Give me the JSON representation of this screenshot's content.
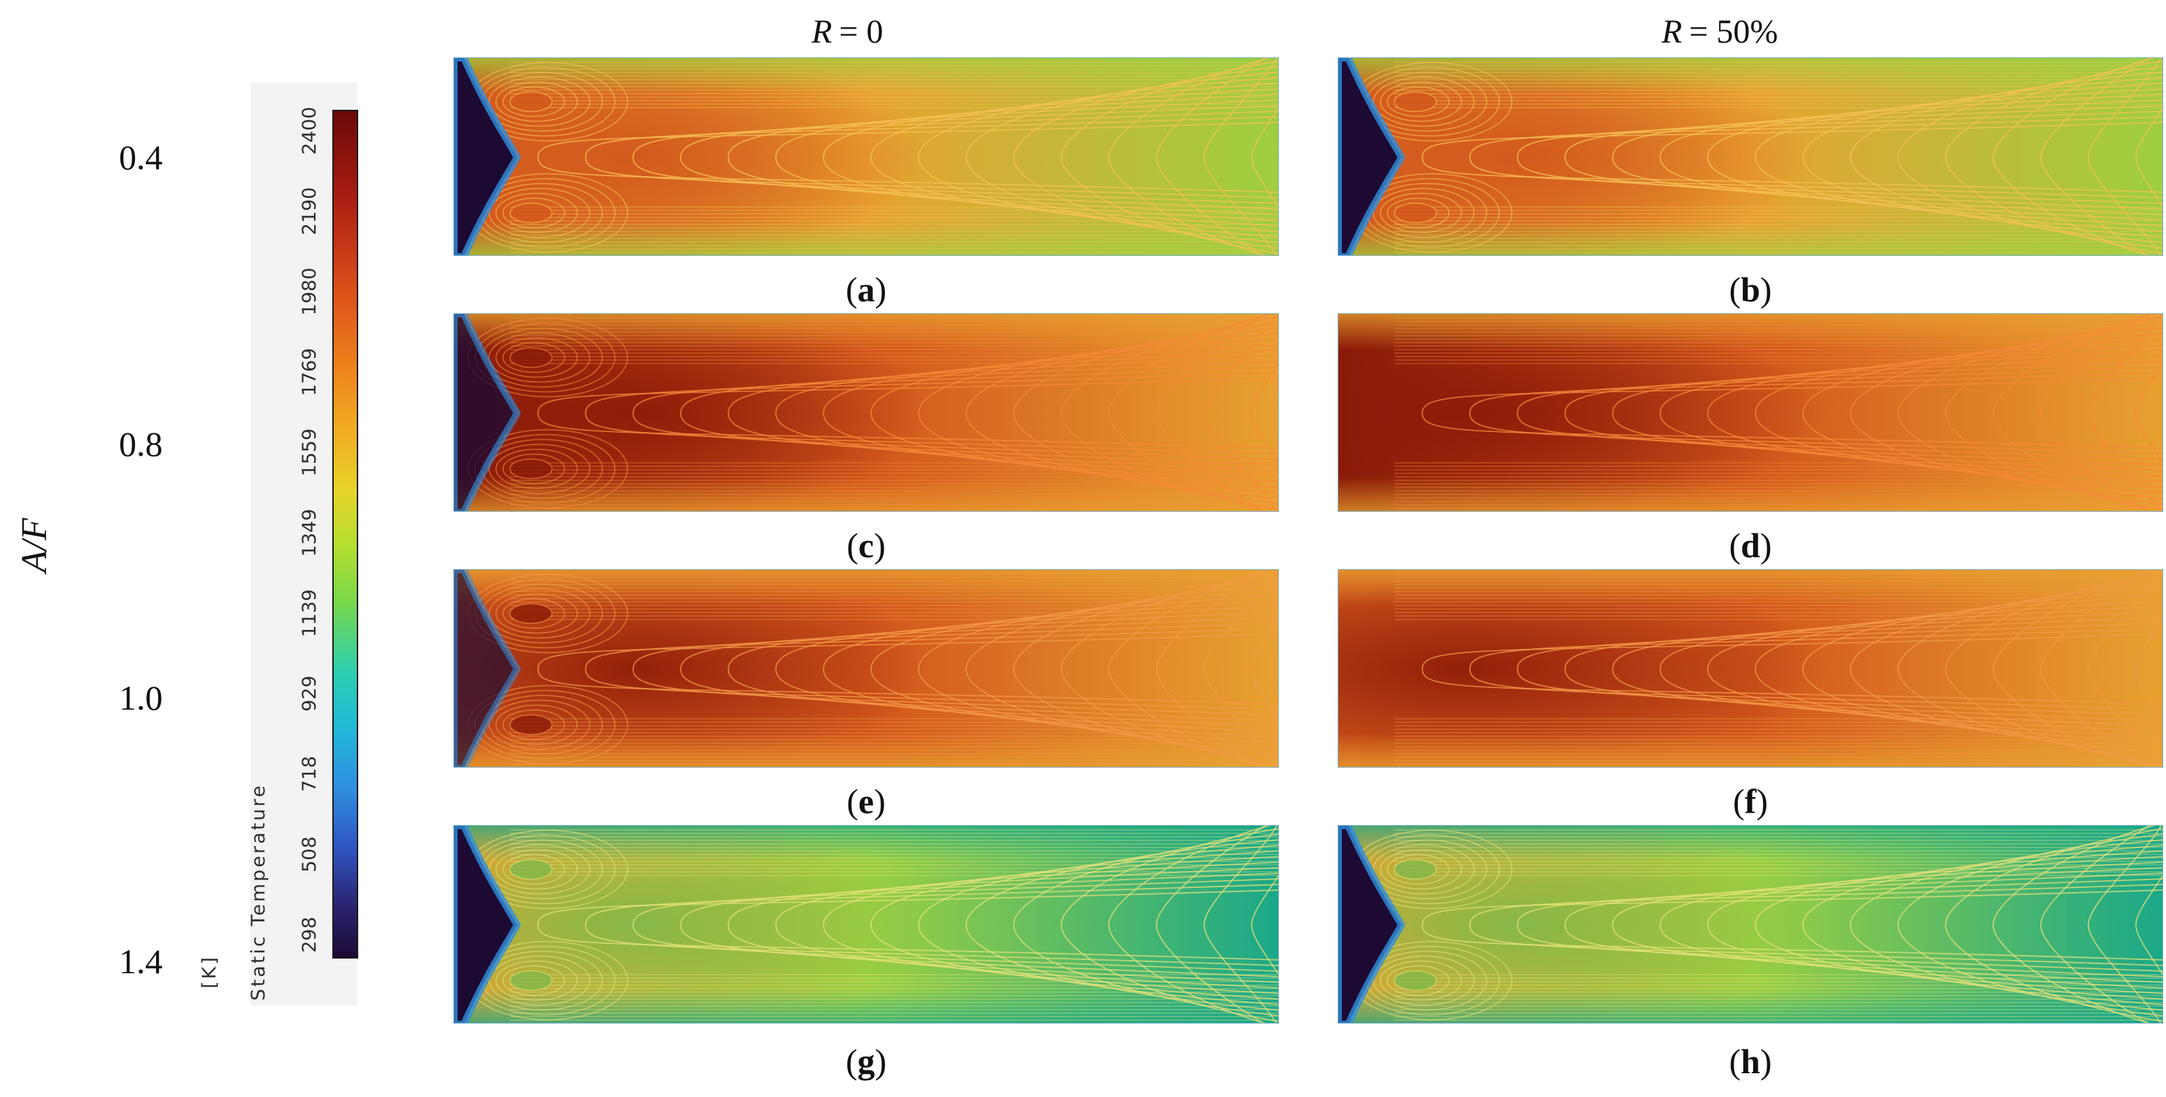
{
  "columns": [
    {
      "var": "R",
      "value": "= 0"
    },
    {
      "var": "R",
      "value": "= 50%"
    }
  ],
  "axis_label": "A/F",
  "rows": [
    "0.4",
    "0.8",
    "1.0",
    "1.4"
  ],
  "colorbar": {
    "title": "Static Temperature",
    "unit": "[K]",
    "ticks": [
      "2400",
      "2190",
      "1980",
      "1769",
      "1559",
      "1349",
      "1139",
      "929",
      "718",
      "508",
      "298"
    ]
  },
  "panels": [
    {
      "id": "a",
      "label": "a"
    },
    {
      "id": "b",
      "label": "b"
    },
    {
      "id": "c",
      "label": "c"
    },
    {
      "id": "d",
      "label": "d"
    },
    {
      "id": "e",
      "label": "e"
    },
    {
      "id": "f",
      "label": "f"
    },
    {
      "id": "g",
      "label": "g"
    },
    {
      "id": "h",
      "label": "h"
    }
  ],
  "colors": {
    "hot": "#8a1a08",
    "warm": "#d2561c",
    "mid": "#e8a230",
    "cool": "#9ccf40",
    "cold": "#1aa88a",
    "inlet": "#1c0a33"
  }
}
